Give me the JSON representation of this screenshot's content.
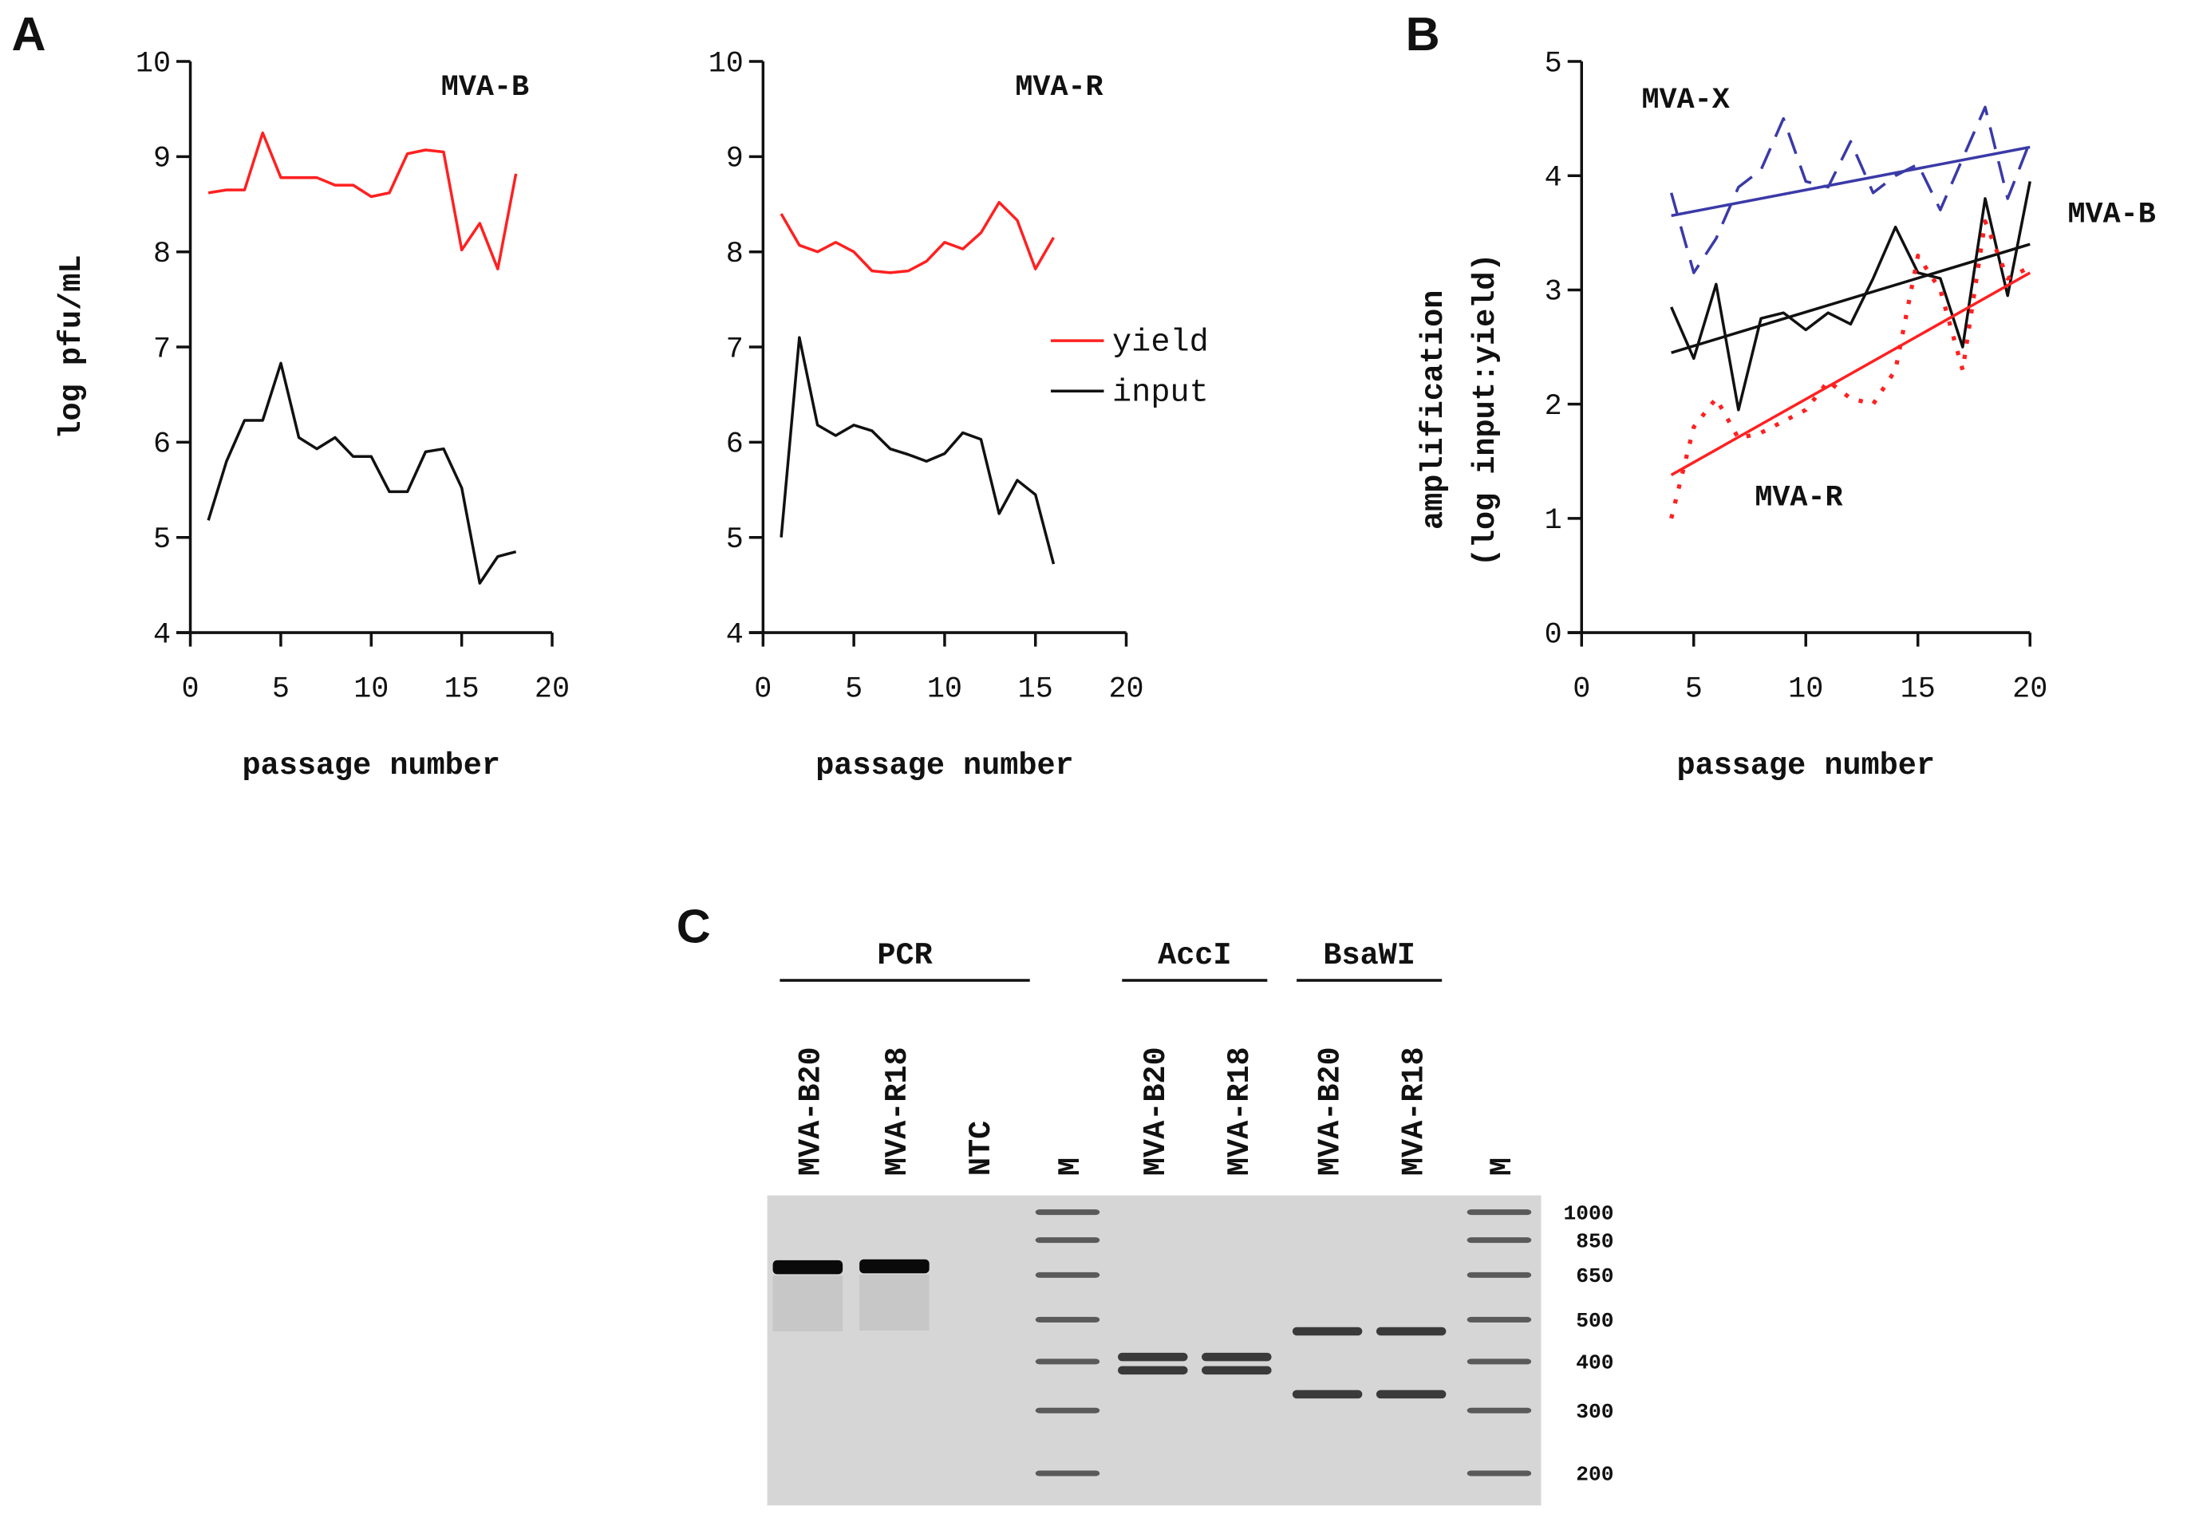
{
  "panels": {
    "a": "A",
    "b": "B",
    "c": "C"
  },
  "colors": {
    "yield": "#ff2020",
    "input": "#111111",
    "mvax": "#3a3aa8",
    "mvab": "#111111",
    "mvar": "#ff2020",
    "gel": "#d6d6d6"
  },
  "chart_data": [
    {
      "type": "line",
      "title": "MVA-B",
      "xlabel": "passage number",
      "ylabel": "log pfu/mL",
      "xlim": [
        0,
        20
      ],
      "ylim": [
        4,
        10
      ],
      "xticks": [
        "0",
        "5",
        "10",
        "15",
        "20"
      ],
      "yticks": [
        "4",
        "5",
        "6",
        "7",
        "8",
        "9",
        "10"
      ],
      "x": [
        1,
        2,
        3,
        4,
        5,
        6,
        7,
        8,
        9,
        10,
        11,
        12,
        13,
        14,
        15,
        16,
        17,
        18
      ],
      "series": [
        {
          "name": "yield",
          "color": "#ff2020",
          "values": [
            8.62,
            8.65,
            8.65,
            9.25,
            8.78,
            8.78,
            8.78,
            8.7,
            8.7,
            8.58,
            8.62,
            9.03,
            9.07,
            9.05,
            8.02,
            8.3,
            7.82,
            8.82
          ]
        },
        {
          "name": "input",
          "color": "#111111",
          "values": [
            5.18,
            5.8,
            6.23,
            6.23,
            6.83,
            6.05,
            5.93,
            6.05,
            5.85,
            5.85,
            5.48,
            5.48,
            5.9,
            5.93,
            5.52,
            4.52,
            4.8,
            4.85
          ]
        }
      ]
    },
    {
      "type": "line",
      "title": "MVA-R",
      "xlabel": "passage number",
      "ylabel": "",
      "xlim": [
        0,
        20
      ],
      "ylim": [
        4,
        10
      ],
      "xticks": [
        "0",
        "5",
        "10",
        "15",
        "20"
      ],
      "yticks": [
        "4",
        "5",
        "6",
        "7",
        "8",
        "9",
        "10"
      ],
      "legend": {
        "placement": "right",
        "entries": [
          "yield",
          "input"
        ]
      },
      "x": [
        1,
        2,
        3,
        4,
        5,
        6,
        7,
        8,
        9,
        10,
        11,
        12,
        13,
        14,
        15,
        16
      ],
      "series": [
        {
          "name": "yield",
          "color": "#ff2020",
          "values": [
            8.4,
            8.07,
            8.0,
            8.1,
            8.0,
            7.8,
            7.78,
            7.8,
            7.9,
            8.1,
            8.03,
            8.2,
            8.52,
            8.33,
            7.82,
            8.15
          ]
        },
        {
          "name": "input",
          "color": "#111111",
          "values": [
            5.0,
            7.1,
            6.18,
            6.07,
            6.18,
            6.12,
            5.93,
            5.87,
            5.8,
            5.88,
            6.1,
            6.03,
            5.25,
            5.6,
            5.45,
            4.72
          ]
        }
      ]
    },
    {
      "type": "line",
      "title": "",
      "xlabel": "passage number",
      "ylabel": [
        "amplification",
        "(log input:yield)"
      ],
      "xlim": [
        0,
        20
      ],
      "ylim": [
        0,
        5
      ],
      "xticks": [
        "0",
        "5",
        "10",
        "15",
        "20"
      ],
      "yticks": [
        "0",
        "1",
        "2",
        "3",
        "4",
        "5"
      ],
      "x": [
        4,
        5,
        6,
        7,
        8,
        9,
        10,
        11,
        12,
        13,
        14,
        15,
        16,
        17,
        18,
        19,
        20
      ],
      "series": [
        {
          "name": "MVA-X",
          "color": "#3a3aa8",
          "style": "dashed",
          "values": [
            3.85,
            3.15,
            3.45,
            3.9,
            4.05,
            4.5,
            3.95,
            3.9,
            4.3,
            3.85,
            4.0,
            4.1,
            3.7,
            4.15,
            4.6,
            3.8,
            4.3
          ],
          "trend": [
            3.65,
            4.25
          ]
        },
        {
          "name": "MVA-B",
          "color": "#111111",
          "style": "solid",
          "values": [
            2.85,
            2.4,
            3.05,
            1.95,
            2.75,
            2.8,
            2.65,
            2.8,
            2.7,
            3.1,
            3.55,
            3.15,
            3.1,
            2.5,
            3.8,
            2.95,
            3.95
          ],
          "trend": [
            2.45,
            3.4
          ]
        },
        {
          "name": "MVA-R",
          "color": "#ff2020",
          "style": "dotted",
          "values": [
            1.0,
            1.8,
            2.05,
            1.7,
            1.75,
            1.85,
            1.95,
            2.2,
            2.05,
            2.0,
            2.3,
            3.3,
            3.0,
            2.3,
            3.6,
            3.1,
            3.2
          ],
          "trend": [
            1.38,
            3.15
          ]
        }
      ]
    }
  ],
  "gel": {
    "groups": [
      {
        "label": "PCR",
        "lanes": [
          0,
          1,
          2
        ]
      },
      {
        "label": "AccI",
        "lanes": [
          4,
          5
        ]
      },
      {
        "label": "BsaWI",
        "lanes": [
          6,
          7
        ]
      }
    ],
    "lanes": [
      "MVA-B20",
      "MVA-R18",
      "NTC",
      "M",
      "MVA-B20",
      "MVA-R18",
      "MVA-B20",
      "MVA-R18",
      "M"
    ],
    "marker_sizes": [
      "1000",
      "850",
      "650",
      "500",
      "400",
      "300",
      "200"
    ],
    "bands_bp": [
      [
        690
      ],
      [
        695
      ],
      [],
      [
        1000,
        850,
        650,
        500,
        400,
        300,
        200
      ],
      [
        410,
        380
      ],
      [
        410,
        380
      ],
      [
        470,
        330
      ],
      [
        470,
        330
      ],
      [
        1000,
        850,
        650,
        500,
        400,
        300,
        200
      ]
    ]
  }
}
